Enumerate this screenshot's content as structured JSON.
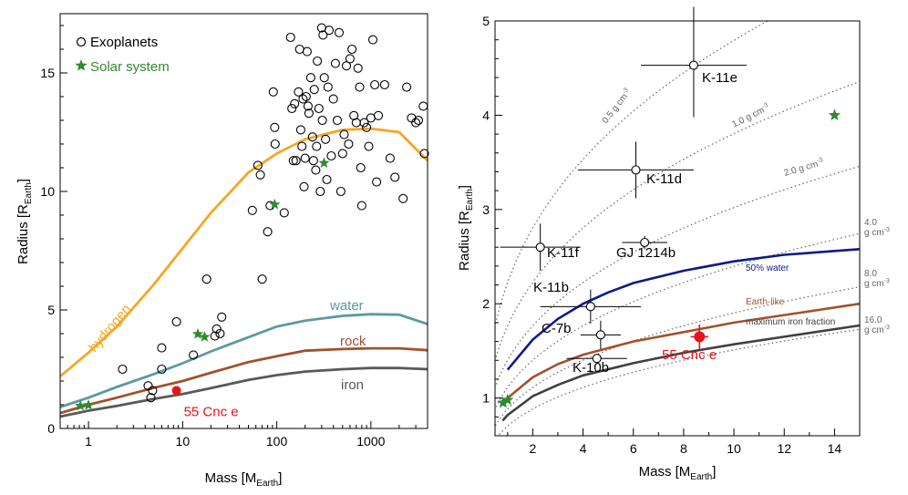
{
  "figure": {
    "colors": {
      "hydrogen": "#f5a623",
      "water": "#5b9aa0",
      "rock": "#a0522d",
      "iron": "#595959",
      "solar": "#2e8b2e",
      "cnc": "#e8141b",
      "fifty_water": "#0a1a8a",
      "earthlike": "#a0522d",
      "maxiron": "#404040",
      "density": "#666666"
    }
  },
  "chart_data": [
    {
      "type": "scatter",
      "xscale": "log",
      "xlim": [
        0.5,
        4000
      ],
      "ylim": [
        0,
        17.5
      ],
      "xlabel": "Mass [M",
      "xlabel_sub": "Earth",
      "xlabel_end": "]",
      "ylabel": "Radius [R",
      "ylabel_sub": "Earth",
      "ylabel_end": "]",
      "xticks": [
        {
          "v": 1,
          "label": "1"
        },
        {
          "v": 10,
          "label": "10"
        },
        {
          "v": 100,
          "label": "100"
        },
        {
          "v": 1000,
          "label": "1000"
        }
      ],
      "yticks": [
        {
          "v": 0,
          "label": "0"
        },
        {
          "v": 5,
          "label": "5"
        },
        {
          "v": 10,
          "label": "10"
        },
        {
          "v": 15,
          "label": "15"
        }
      ],
      "legend": {
        "placement": "top-left",
        "exoplanets": "Exoplanets",
        "solar": "Solar system"
      },
      "exoplanets": [
        [
          2.3,
          2.5
        ],
        [
          4.3,
          1.8
        ],
        [
          4.6,
          1.3
        ],
        [
          4.8,
          1.6
        ],
        [
          6,
          3.4
        ],
        [
          6,
          2.5
        ],
        [
          8.6,
          4.5
        ],
        [
          13,
          3.1
        ],
        [
          22,
          3.9
        ],
        [
          23,
          4.2
        ],
        [
          25,
          4
        ],
        [
          26,
          4.7
        ],
        [
          18,
          6.3
        ],
        [
          55,
          9.2
        ],
        [
          63,
          11.1
        ],
        [
          67,
          10.7
        ],
        [
          70,
          6.3
        ],
        [
          80,
          8.3
        ],
        [
          85,
          9.4
        ],
        [
          92,
          14.2
        ],
        [
          95,
          12.7
        ],
        [
          96,
          12
        ],
        [
          120,
          9.1
        ],
        [
          140,
          16.5
        ],
        [
          145,
          13.5
        ],
        [
          150,
          11.3
        ],
        [
          155,
          13.7
        ],
        [
          160,
          11.3
        ],
        [
          170,
          14.2
        ],
        [
          175,
          16
        ],
        [
          180,
          12.6
        ],
        [
          185,
          11.9
        ],
        [
          190,
          13.9
        ],
        [
          195,
          10.2
        ],
        [
          200,
          11.4
        ],
        [
          205,
          14
        ],
        [
          210,
          15.9
        ],
        [
          215,
          13.6
        ],
        [
          220,
          13.3
        ],
        [
          230,
          14.8
        ],
        [
          240,
          12.3
        ],
        [
          245,
          11.3
        ],
        [
          250,
          14.3
        ],
        [
          260,
          10.9
        ],
        [
          265,
          11.9
        ],
        [
          270,
          15.5
        ],
        [
          280,
          13.5
        ],
        [
          290,
          10
        ],
        [
          300,
          16.9
        ],
        [
          305,
          13
        ],
        [
          310,
          16.6
        ],
        [
          320,
          14.8
        ],
        [
          330,
          12.2
        ],
        [
          340,
          10.5
        ],
        [
          350,
          14.4
        ],
        [
          360,
          16.8
        ],
        [
          380,
          11.5
        ],
        [
          400,
          13.9
        ],
        [
          420,
          15.4
        ],
        [
          440,
          13
        ],
        [
          460,
          16.7
        ],
        [
          480,
          10
        ],
        [
          500,
          11.6
        ],
        [
          520,
          12.4
        ],
        [
          550,
          15.3
        ],
        [
          580,
          12
        ],
        [
          600,
          15.6
        ],
        [
          630,
          16
        ],
        [
          660,
          13.2
        ],
        [
          700,
          12.9
        ],
        [
          730,
          15.2
        ],
        [
          760,
          14.4
        ],
        [
          780,
          11
        ],
        [
          800,
          9.4
        ],
        [
          850,
          12.9
        ],
        [
          900,
          12.7
        ],
        [
          950,
          11.9
        ],
        [
          1000,
          13.1
        ],
        [
          1050,
          16.4
        ],
        [
          1100,
          14.5
        ],
        [
          1150,
          10.4
        ],
        [
          1200,
          13.2
        ],
        [
          1400,
          14.5
        ],
        [
          1600,
          11.4
        ],
        [
          1800,
          10.6
        ],
        [
          2200,
          9.7
        ],
        [
          2400,
          14.4
        ],
        [
          2700,
          13.1
        ],
        [
          3000,
          12.9
        ],
        [
          3200,
          13
        ],
        [
          3600,
          13.6
        ],
        [
          3700,
          11.6
        ]
      ],
      "solar_system": [
        [
          0.82,
          0.95
        ],
        [
          1.0,
          0.98
        ],
        [
          14.5,
          3.98
        ],
        [
          17.1,
          3.86
        ],
        [
          95,
          9.45
        ],
        [
          318,
          11.2
        ]
      ],
      "highlight": {
        "x": 8.6,
        "y": 1.6,
        "label": "55 Cnc e"
      },
      "curves": [
        {
          "name": "hydrogen",
          "label": "hydrogen",
          "points": [
            [
              0.5,
              2.2
            ],
            [
              1,
              3.2
            ],
            [
              2,
              4.3
            ],
            [
              5,
              6.1
            ],
            [
              10,
              7.6
            ],
            [
              20,
              9.1
            ],
            [
              50,
              10.8
            ],
            [
              100,
              11.6
            ],
            [
              200,
              12.2
            ],
            [
              500,
              12.6
            ],
            [
              1000,
              12.65
            ],
            [
              2000,
              12.5
            ],
            [
              3000,
              11.8
            ],
            [
              4000,
              11.3
            ]
          ]
        },
        {
          "name": "water",
          "label": "water",
          "points": [
            [
              0.5,
              0.9
            ],
            [
              1,
              1.3
            ],
            [
              2,
              1.75
            ],
            [
              5,
              2.3
            ],
            [
              10,
              2.75
            ],
            [
              20,
              3.25
            ],
            [
              50,
              3.85
            ],
            [
              100,
              4.3
            ],
            [
              200,
              4.55
            ],
            [
              500,
              4.75
            ],
            [
              1000,
              4.82
            ],
            [
              2000,
              4.8
            ],
            [
              4000,
              4.4
            ]
          ]
        },
        {
          "name": "rock",
          "label": "rock",
          "points": [
            [
              0.5,
              0.65
            ],
            [
              1,
              1.0
            ],
            [
              2,
              1.3
            ],
            [
              5,
              1.72
            ],
            [
              10,
              2.0
            ],
            [
              20,
              2.35
            ],
            [
              50,
              2.8
            ],
            [
              100,
              3.05
            ],
            [
              200,
              3.28
            ],
            [
              500,
              3.35
            ],
            [
              1000,
              3.38
            ],
            [
              2000,
              3.38
            ],
            [
              4000,
              3.3
            ]
          ]
        },
        {
          "name": "iron",
          "label": "iron",
          "points": [
            [
              0.5,
              0.5
            ],
            [
              1,
              0.75
            ],
            [
              2,
              0.95
            ],
            [
              5,
              1.25
            ],
            [
              10,
              1.45
            ],
            [
              20,
              1.7
            ],
            [
              50,
              2.05
            ],
            [
              100,
              2.25
            ],
            [
              200,
              2.4
            ],
            [
              500,
              2.5
            ],
            [
              1000,
              2.55
            ],
            [
              2000,
              2.55
            ],
            [
              4000,
              2.5
            ]
          ]
        }
      ]
    },
    {
      "type": "scatter",
      "xlim": [
        0.5,
        15
      ],
      "ylim": [
        0.6,
        5
      ],
      "xlabel": "Mass [M",
      "xlabel_sub": "Earth",
      "xlabel_end": "]",
      "ylabel": "Radius [R",
      "ylabel_sub": "Earth",
      "ylabel_end": "]",
      "xticks": [
        {
          "v": 2,
          "label": "2"
        },
        {
          "v": 4,
          "label": "4"
        },
        {
          "v": 6,
          "label": "6"
        },
        {
          "v": 8,
          "label": "8"
        },
        {
          "v": 10,
          "label": "10"
        },
        {
          "v": 12,
          "label": "12"
        },
        {
          "v": 14,
          "label": "14"
        }
      ],
      "yticks": [
        {
          "v": 1,
          "label": "1"
        },
        {
          "v": 2,
          "label": "2"
        },
        {
          "v": 3,
          "label": "3"
        },
        {
          "v": 4,
          "label": "4"
        },
        {
          "v": 5,
          "label": "5"
        }
      ],
      "planets": [
        {
          "name": "K-11e",
          "x": 8.4,
          "y": 4.53,
          "xerr": [
            2.1,
            2.1
          ],
          "yerr": [
            0.55,
            0.62
          ]
        },
        {
          "name": "K-11d",
          "x": 6.1,
          "y": 3.42,
          "xerr": [
            2.3,
            2.3
          ],
          "yerr": [
            0.3,
            0.3
          ]
        },
        {
          "name": "K-11f",
          "x": 2.3,
          "y": 2.6,
          "xerr": [
            1.6,
            1.6
          ],
          "yerr": [
            0.25,
            0.25
          ]
        },
        {
          "name": "GJ 1214b",
          "x": 6.45,
          "y": 2.65,
          "xerr": [
            0.9,
            0.9
          ],
          "yerr": [
            0.07,
            0.07
          ]
        },
        {
          "name": "K-11b",
          "x": 4.3,
          "y": 1.97,
          "xerr": [
            2.0,
            2.0
          ],
          "yerr": [
            0.18,
            0.18
          ]
        },
        {
          "name": "C-7b",
          "x": 4.7,
          "y": 1.67,
          "xerr": [
            0.8,
            0.8
          ],
          "yerr": [
            0.15,
            0.15
          ]
        },
        {
          "name": "K-10b",
          "x": 4.55,
          "y": 1.42,
          "xerr": [
            1.2,
            1.2
          ],
          "yerr": [
            0.04,
            0.04
          ]
        }
      ],
      "highlight": {
        "x": 8.63,
        "y": 1.65,
        "xerr": [
          0.35,
          0.35
        ],
        "yerr": [
          0.13,
          0.13
        ],
        "label": "55 Cnc e"
      },
      "solar_system": [
        [
          0.82,
          0.95
        ],
        [
          1.0,
          0.98
        ],
        [
          14,
          4.0
        ]
      ],
      "density_lines": [
        {
          "rho": 0.5,
          "label": "0.5 g cm",
          "sup": "-3"
        },
        {
          "rho": 1.0,
          "label": "1.0 g cm",
          "sup": "-3"
        },
        {
          "rho": 2.0,
          "label": "2.0 g cm",
          "sup": "-3"
        },
        {
          "rho": 4.0,
          "label": "4.0",
          "label2": "g cm",
          "sup": "-3"
        },
        {
          "rho": 8.0,
          "label": "8.0",
          "label2": "g cm",
          "sup": "-3"
        },
        {
          "rho": 16.0,
          "label": "16.0",
          "label2": "g cm",
          "sup": "-3"
        }
      ],
      "curves": [
        {
          "name": "fifty_water",
          "label": "50% water",
          "points": [
            [
              1,
              1.3
            ],
            [
              2,
              1.62
            ],
            [
              3,
              1.84
            ],
            [
              4,
              2.0
            ],
            [
              5,
              2.12
            ],
            [
              6,
              2.22
            ],
            [
              8,
              2.35
            ],
            [
              10,
              2.45
            ],
            [
              12,
              2.52
            ],
            [
              15,
              2.58
            ]
          ]
        },
        {
          "name": "earthlike",
          "label": "Earth-like",
          "points": [
            [
              0.8,
              0.92
            ],
            [
              1,
              1.0
            ],
            [
              2,
              1.22
            ],
            [
              3,
              1.36
            ],
            [
              4,
              1.46
            ],
            [
              6,
              1.6
            ],
            [
              8,
              1.7
            ],
            [
              10,
              1.8
            ],
            [
              12,
              1.88
            ],
            [
              15,
              2.0
            ]
          ]
        },
        {
          "name": "maxiron",
          "label": "maximum iron fraction",
          "points": [
            [
              0.8,
              0.76
            ],
            [
              1,
              0.82
            ],
            [
              2,
              1.02
            ],
            [
              3,
              1.14
            ],
            [
              4,
              1.24
            ],
            [
              6,
              1.37
            ],
            [
              8,
              1.48
            ],
            [
              10,
              1.57
            ],
            [
              12,
              1.65
            ],
            [
              15,
              1.77
            ]
          ]
        }
      ]
    }
  ]
}
